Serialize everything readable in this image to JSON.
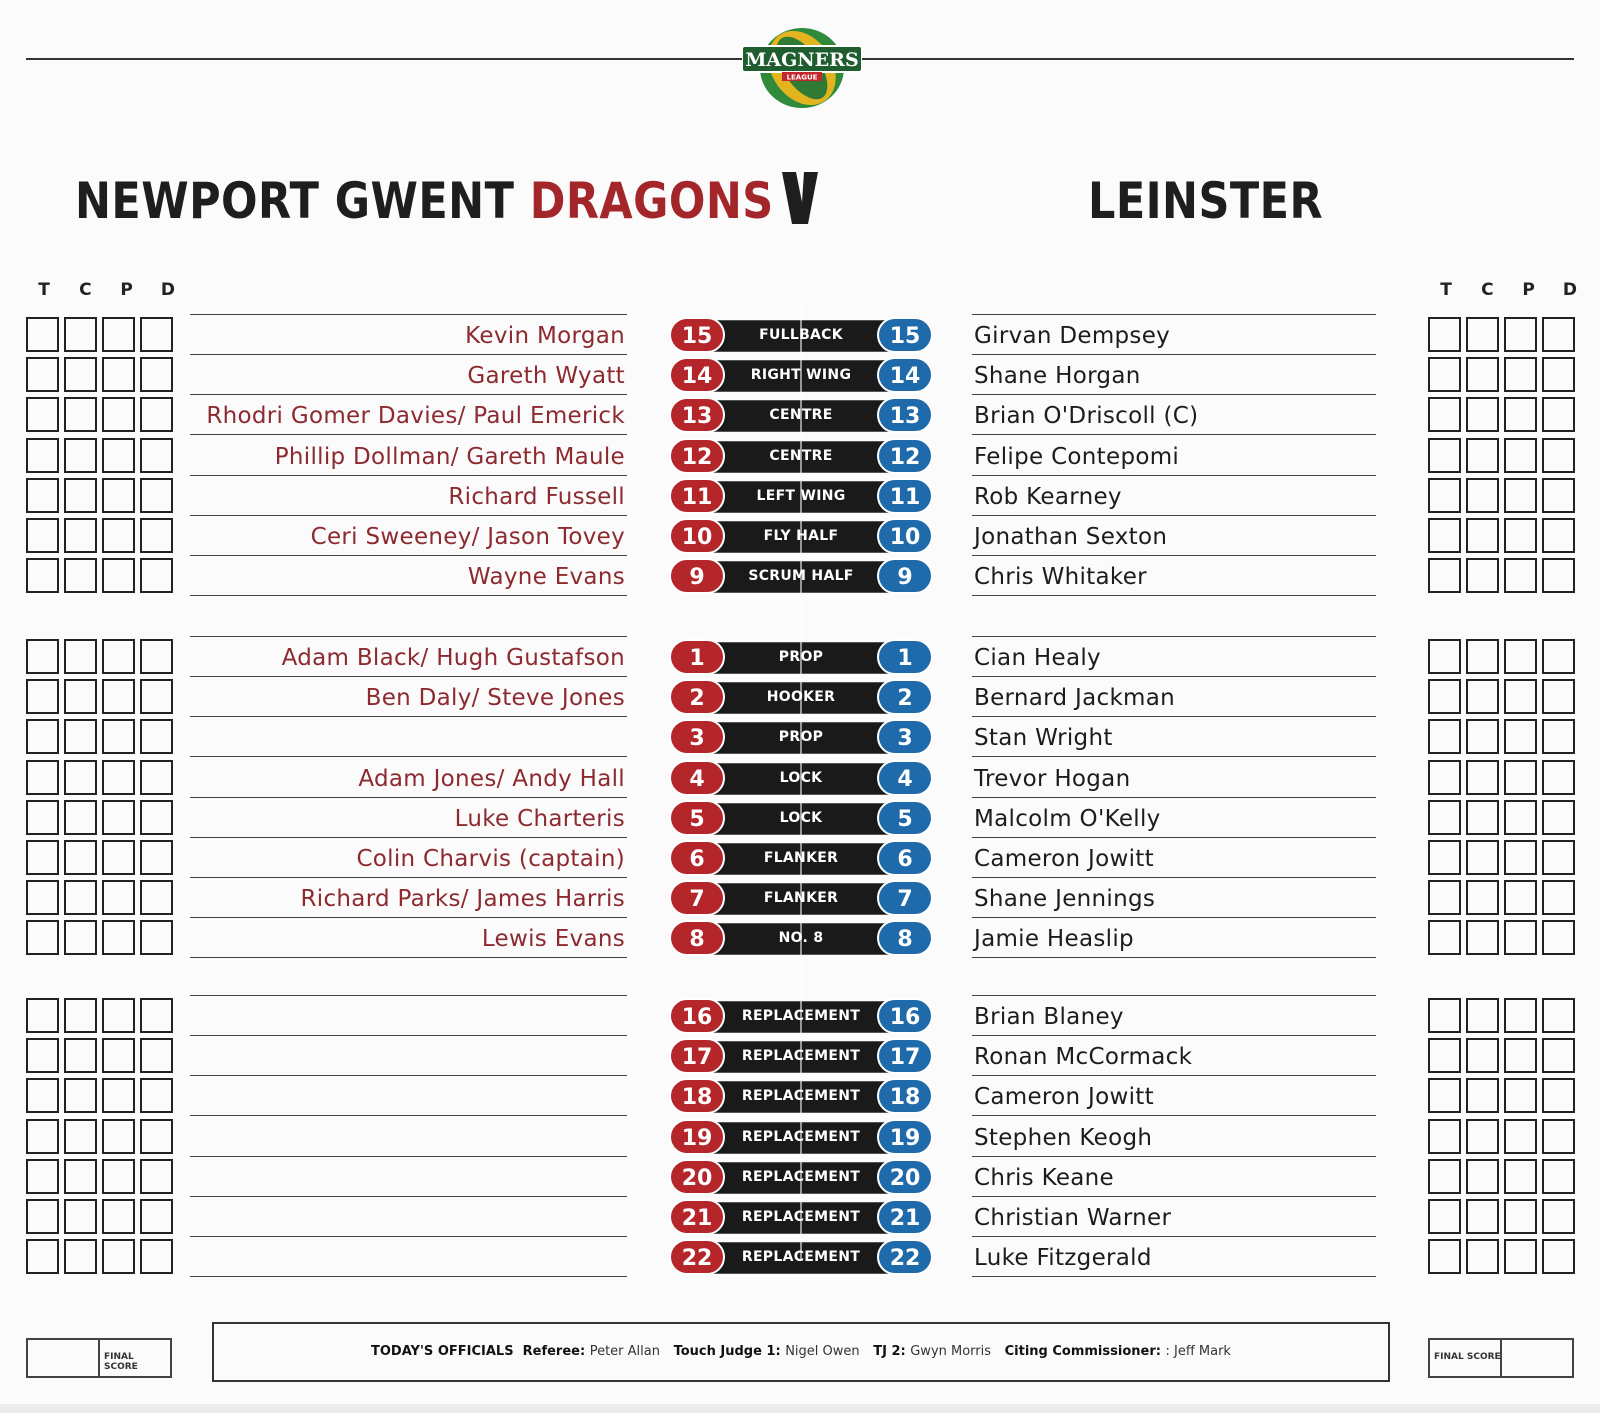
{
  "logo": {
    "main": "MAGNERS",
    "sub": "LEAGUE"
  },
  "home": {
    "name_black": "NEWPORT GWENT ",
    "name_red": "DRAGONS"
  },
  "vs": "V",
  "away": {
    "name": "LEINSTER"
  },
  "score_headers": [
    "T",
    "C",
    "P",
    "D"
  ],
  "rows": [
    {
      "left": "Kevin Morgan",
      "num": "15",
      "position": "FULLBACK",
      "right": "Girvan Dempsey"
    },
    {
      "left": "Gareth Wyatt",
      "num": "14",
      "position": "RIGHT WING",
      "right": "Shane Horgan"
    },
    {
      "left": "Rhodri Gomer Davies/ Paul Emerick",
      "num": "13",
      "position": "CENTRE",
      "right": "Brian O'Driscoll (C)"
    },
    {
      "left": "Phillip Dollman/ Gareth Maule",
      "num": "12",
      "position": "CENTRE",
      "right": "Felipe Contepomi"
    },
    {
      "left": "Richard Fussell",
      "num": "11",
      "position": "LEFT WING",
      "right": "Rob Kearney"
    },
    {
      "left": "Ceri Sweeney/ Jason Tovey",
      "num": "10",
      "position": "FLY HALF",
      "right": "Jonathan Sexton"
    },
    {
      "left": "Wayne Evans",
      "num": "9",
      "position": "SCRUM HALF",
      "right": "Chris Whitaker"
    },
    {
      "left": "Adam Black/ Hugh Gustafson",
      "num": "1",
      "position": "PROP",
      "right": "Cian Healy"
    },
    {
      "left": "Ben Daly/ Steve Jones",
      "num": "2",
      "position": "HOOKER",
      "right": "Bernard Jackman"
    },
    {
      "left": "",
      "num": "3",
      "position": "PROP",
      "right": "Stan Wright"
    },
    {
      "left": "Adam Jones/ Andy Hall",
      "num": "4",
      "position": "LOCK",
      "right": "Trevor Hogan"
    },
    {
      "left": "Luke Charteris",
      "num": "5",
      "position": "LOCK",
      "right": "Malcolm O'Kelly"
    },
    {
      "left": "Colin Charvis (captain)",
      "num": "6",
      "position": "FLANKER",
      "right": "Cameron Jowitt"
    },
    {
      "left": "Richard Parks/ James Harris",
      "num": "7",
      "position": "FLANKER",
      "right": "Shane Jennings"
    },
    {
      "left": "Lewis Evans",
      "num": "8",
      "position": "NO. 8",
      "right": "Jamie Heaslip"
    },
    {
      "left": "",
      "num": "16",
      "position": "REPLACEMENT",
      "right": "Brian Blaney"
    },
    {
      "left": "",
      "num": "17",
      "position": "REPLACEMENT",
      "right": "Ronan McCormack"
    },
    {
      "left": "",
      "num": "18",
      "position": "REPLACEMENT",
      "right": "Cameron Jowitt"
    },
    {
      "left": "",
      "num": "19",
      "position": "REPLACEMENT",
      "right": "Stephen Keogh"
    },
    {
      "left": "",
      "num": "20",
      "position": "REPLACEMENT",
      "right": "Chris Keane"
    },
    {
      "left": "",
      "num": "21",
      "position": "REPLACEMENT",
      "right": "Christian Warner"
    },
    {
      "left": "",
      "num": "22",
      "position": "REPLACEMENT",
      "right": "Luke Fitzgerald"
    }
  ],
  "final_score_label": "FINAL SCORE",
  "officials": {
    "heading": "TODAY'S OFFICIALS",
    "referee_label": "Referee:",
    "referee": "Peter Allan",
    "tj1_label": "Touch Judge 1:",
    "tj1": "Nigel Owen",
    "tj2_label": "TJ 2:",
    "tj2": "Gwyn Morris",
    "citing_label": "Citing Commissioner:",
    "citing": ": Jeff Mark"
  },
  "colors": {
    "home_red": "#b5262b",
    "away_blue": "#1f6aaa",
    "bar_black": "#1a1a1a",
    "name_red": "#8c2a2f"
  }
}
